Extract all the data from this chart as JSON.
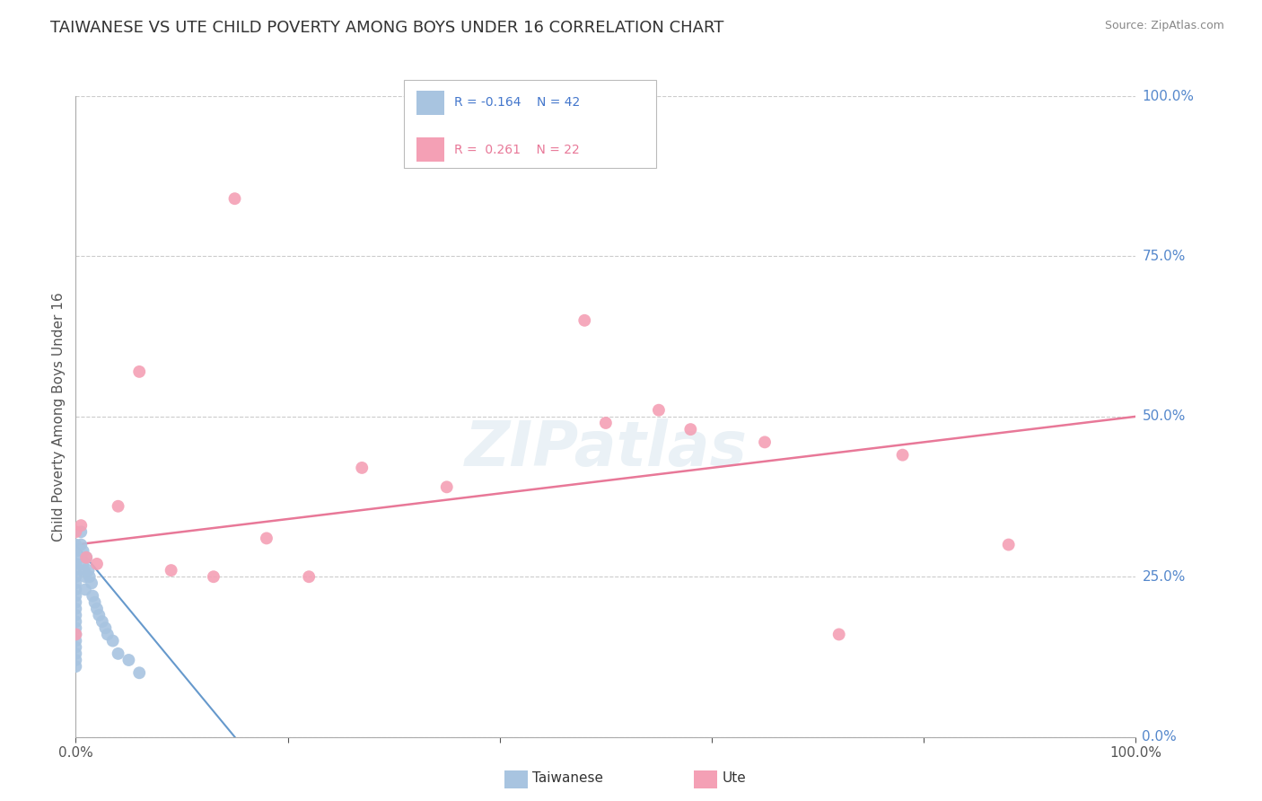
{
  "title": "TAIWANESE VS UTE CHILD POVERTY AMONG BOYS UNDER 16 CORRELATION CHART",
  "source": "Source: ZipAtlas.com",
  "ylabel": "Child Poverty Among Boys Under 16",
  "watermark": "ZIPatlas",
  "xlim": [
    0.0,
    1.0
  ],
  "ylim": [
    0.0,
    1.0
  ],
  "ytick_values": [
    0.0,
    0.25,
    0.5,
    0.75,
    1.0
  ],
  "ytick_labels": [
    "0.0%",
    "25.0%",
    "50.0%",
    "75.0%",
    "100.0%"
  ],
  "xtick_values": [
    0.0,
    0.2,
    0.4,
    0.6,
    0.8,
    1.0
  ],
  "xtick_labels": [
    "0.0%",
    "",
    "",
    "",
    "",
    "100.0%"
  ],
  "legend_r1": "R = -0.164",
  "legend_n1": "N = 42",
  "legend_r2": "R =  0.261",
  "legend_n2": "N = 22",
  "taiwanese_color": "#a8c4e0",
  "ute_color": "#f4a0b5",
  "trendline_taiwanese_color": "#6699cc",
  "trendline_ute_color": "#e87898",
  "background_color": "#ffffff",
  "grid_color": "#cccccc",
  "taiwanese_x": [
    0.0,
    0.0,
    0.0,
    0.0,
    0.0,
    0.0,
    0.0,
    0.0,
    0.0,
    0.0,
    0.0,
    0.0,
    0.0,
    0.0,
    0.0,
    0.0,
    0.0,
    0.0,
    0.0,
    0.0,
    0.005,
    0.005,
    0.007,
    0.007,
    0.008,
    0.009,
    0.009,
    0.01,
    0.012,
    0.013,
    0.015,
    0.016,
    0.018,
    0.02,
    0.022,
    0.025,
    0.028,
    0.03,
    0.035,
    0.04,
    0.05,
    0.06
  ],
  "taiwanese_y": [
    0.3,
    0.29,
    0.28,
    0.27,
    0.26,
    0.25,
    0.24,
    0.23,
    0.22,
    0.21,
    0.2,
    0.19,
    0.18,
    0.17,
    0.16,
    0.15,
    0.14,
    0.13,
    0.12,
    0.11,
    0.32,
    0.3,
    0.29,
    0.27,
    0.26,
    0.25,
    0.23,
    0.28,
    0.26,
    0.25,
    0.24,
    0.22,
    0.21,
    0.2,
    0.19,
    0.18,
    0.17,
    0.16,
    0.15,
    0.13,
    0.12,
    0.1
  ],
  "ute_x": [
    0.0,
    0.0,
    0.005,
    0.01,
    0.02,
    0.04,
    0.06,
    0.09,
    0.13,
    0.15,
    0.18,
    0.22,
    0.27,
    0.35,
    0.48,
    0.5,
    0.55,
    0.58,
    0.65,
    0.72,
    0.78,
    0.88
  ],
  "ute_y": [
    0.32,
    0.16,
    0.33,
    0.28,
    0.27,
    0.36,
    0.57,
    0.26,
    0.25,
    0.84,
    0.31,
    0.25,
    0.42,
    0.39,
    0.65,
    0.49,
    0.51,
    0.48,
    0.46,
    0.16,
    0.44,
    0.3
  ],
  "ute_trendline_x0": 0.0,
  "ute_trendline_y0": 0.3,
  "ute_trendline_x1": 1.0,
  "ute_trendline_y1": 0.5,
  "tw_trendline_x0": 0.0,
  "tw_trendline_y0": 0.3,
  "tw_trendline_x1": 0.15,
  "tw_trendline_y1": 0.0
}
